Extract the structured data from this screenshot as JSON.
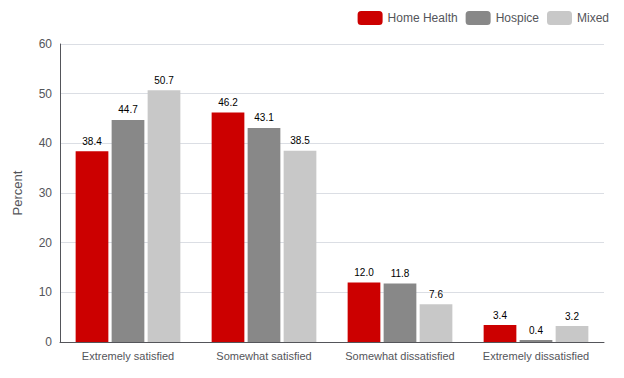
{
  "chart_data": {
    "type": "bar",
    "categories": [
      "Extremely satisfied",
      "Somewhat satisfied",
      "Somewhat dissatisfied",
      "Extremely dissatisfied"
    ],
    "series": [
      {
        "name": "Home Health",
        "color": "#cc0000",
        "values": [
          38.4,
          46.2,
          12.0,
          3.4
        ],
        "value_labels": [
          "38.4",
          "46.2",
          "12.0",
          "3.4"
        ]
      },
      {
        "name": "Hospice",
        "color": "#888888",
        "values": [
          44.7,
          43.1,
          11.8,
          0.4
        ],
        "value_labels": [
          "44.7",
          "43.1",
          "11.8",
          "0.4"
        ]
      },
      {
        "name": "Mixed",
        "color": "#c8c8c8",
        "values": [
          50.7,
          38.5,
          7.6,
          3.2
        ],
        "value_labels": [
          "50.7",
          "38.5",
          "7.6",
          "3.2"
        ]
      }
    ],
    "ylabel": "Percent",
    "ylim": [
      0,
      60
    ],
    "yticks": [
      0,
      10,
      20,
      30,
      40,
      50,
      60
    ],
    "grid": true,
    "legend": "upper right",
    "data_labels": true
  }
}
